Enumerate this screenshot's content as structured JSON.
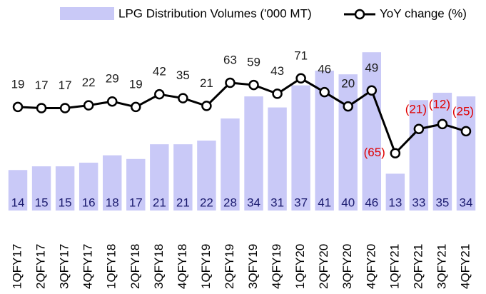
{
  "chart_data": {
    "type": "bar-line",
    "categories": [
      "1QFY17",
      "2QFY17",
      "3QFY17",
      "4QFY17",
      "1QFY18",
      "2QFY18",
      "3QFY18",
      "4QFY18",
      "1QFY19",
      "2QFY19",
      "3QFY19",
      "4QFY19",
      "1QFY20",
      "2QFY20",
      "3QFY20",
      "4QFY20",
      "1QFY21",
      "2QFY21",
      "3QFY21",
      "4QFY21"
    ],
    "series": [
      {
        "name": "LPG Distribution Volumes ('000 MT)",
        "type": "bar",
        "color": "#c9c9f7",
        "label_color": "#1a1a6e",
        "values": [
          14,
          15,
          15,
          16,
          18,
          17,
          21,
          21,
          22,
          28,
          34,
          31,
          37,
          41,
          40,
          46,
          13,
          33,
          35,
          34
        ]
      },
      {
        "name": "YoY change (%)",
        "type": "line",
        "axis": "y2",
        "color": "#000000",
        "label_color": "#1a1a1a",
        "negative_label_color": "#e00000",
        "values": [
          19,
          17,
          17,
          22,
          29,
          19,
          42,
          35,
          21,
          63,
          59,
          43,
          71,
          46,
          20,
          49,
          -65,
          -21,
          -12,
          -25
        ],
        "value_labels": [
          "19",
          "17",
          "17",
          "22",
          "29",
          "19",
          "42",
          "35",
          "21",
          "63",
          "59",
          "43",
          "71",
          "46",
          "20",
          "49",
          "(65)",
          "(21)",
          "(12)",
          "(25)"
        ]
      }
    ],
    "ylim": [
      3,
      60
    ],
    "y2lim": [
      -169,
      212
    ]
  }
}
